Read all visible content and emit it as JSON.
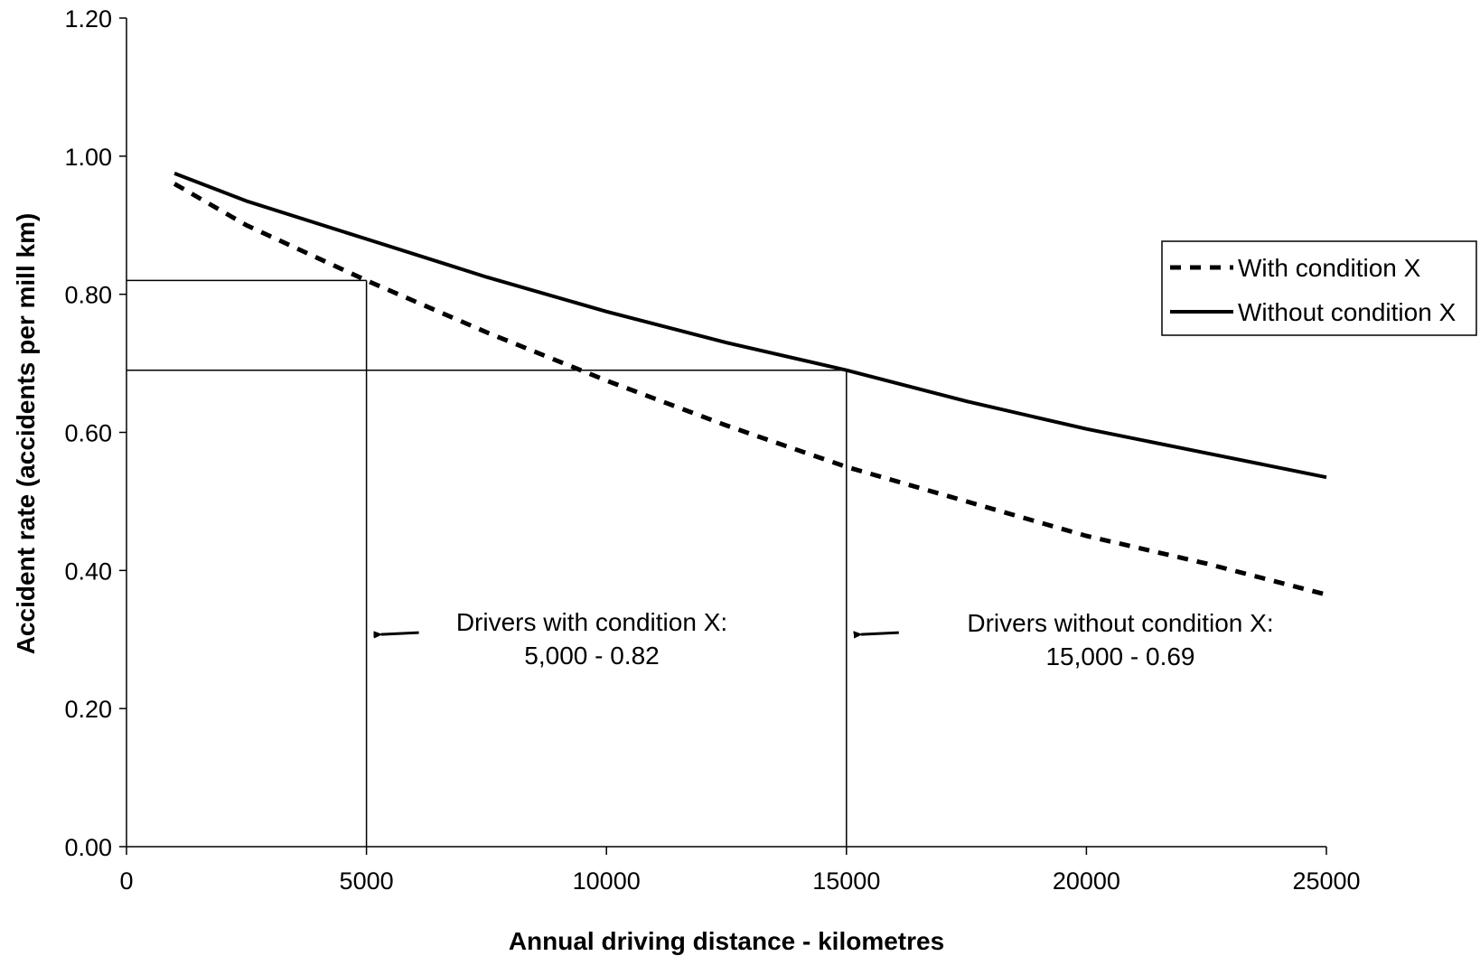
{
  "chart_data": {
    "type": "line",
    "title": "",
    "xlabel": "Annual driving distance - kilometres",
    "ylabel": "Accident rate (accidents per mill km)",
    "xlim": [
      0,
      25000
    ],
    "ylim": [
      0,
      1.2
    ],
    "x_ticks": [
      0,
      5000,
      10000,
      15000,
      20000,
      25000
    ],
    "x_tick_labels": [
      "0",
      "5000",
      "10000",
      "15000",
      "20000",
      "25000"
    ],
    "y_ticks": [
      0,
      0.2,
      0.4,
      0.6,
      0.8,
      1.0,
      1.2
    ],
    "y_tick_labels": [
      "0.00",
      "0.20",
      "0.40",
      "0.60",
      "0.80",
      "1.00",
      "1.20"
    ],
    "grid": false,
    "legend_position": "right",
    "series": [
      {
        "name": "With condition X",
        "style": "dashed",
        "color": "#000000",
        "x": [
          1000,
          2500,
          5000,
          7500,
          10000,
          12500,
          15000,
          17500,
          20000,
          22500,
          25000
        ],
        "y": [
          0.96,
          0.9,
          0.82,
          0.745,
          0.675,
          0.61,
          0.55,
          0.5,
          0.45,
          0.41,
          0.365
        ]
      },
      {
        "name": "Without condition X",
        "style": "solid",
        "color": "#000000",
        "x": [
          1000,
          2500,
          5000,
          7500,
          10000,
          12500,
          15000,
          17500,
          20000,
          22500,
          25000
        ],
        "y": [
          0.975,
          0.935,
          0.88,
          0.825,
          0.775,
          0.73,
          0.69,
          0.645,
          0.605,
          0.57,
          0.535
        ]
      }
    ],
    "reference_lines": [
      {
        "x": 5000,
        "y": 0.82
      },
      {
        "x": 15000,
        "y": 0.69
      }
    ],
    "annotations": [
      {
        "line1": "Drivers with condition X:",
        "line2": "5,000 - 0.82",
        "arrow_to_x": 5000,
        "arrow_y": 0.31
      },
      {
        "line1": "Drivers without condition X:",
        "line2": "15,000 - 0.69",
        "arrow_to_x": 15000,
        "arrow_y": 0.31
      }
    ]
  }
}
